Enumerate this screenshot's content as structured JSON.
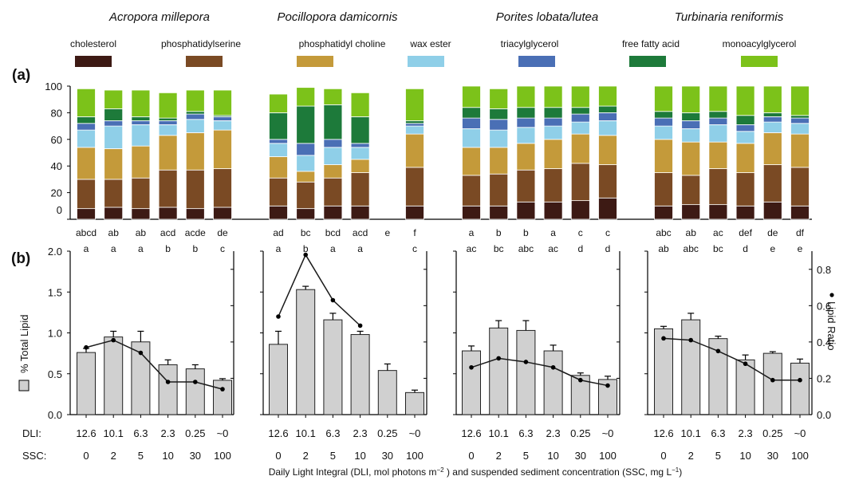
{
  "panel_labels": {
    "a": "(a)",
    "b": "(b)"
  },
  "species": [
    "Acropora millepora",
    "Pocillopora damicornis",
    "Porites lobata/lutea",
    "Turbinaria reniformis"
  ],
  "legend": [
    {
      "label": "cholesterol",
      "color": "#3d1a14"
    },
    {
      "label": "phosphatidylserine",
      "color": "#7a4a24"
    },
    {
      "label": "phosphatidyl choline",
      "color": "#c49a3a"
    },
    {
      "label": "wax ester",
      "color": "#8fcfe8"
    },
    {
      "label": "triacylglycerol",
      "color": "#4a6fb5"
    },
    {
      "label": "free fatty acid",
      "color": "#1d7a3a"
    },
    {
      "label": "monoacylglycerol",
      "color": "#7cc21a"
    }
  ],
  "axis_labels": {
    "y_left": "% Total Lipid",
    "y_right": "Lipid Ratio",
    "row_dli": "DLI:",
    "row_ssc": "SSC:",
    "x_prefix": "Daily Light Integral (DLI, mol photons m",
    "x_exp": "−2",
    "x_mid": " ) and suspended sediment concentration (SSC, mg L",
    "x_exp2": "−1",
    "x_suffix": ")"
  },
  "dli_ticks": [
    "12.6",
    "10.1",
    "6.3",
    "2.3",
    "0.25",
    "~0"
  ],
  "ssc_ticks": [
    "0",
    "2",
    "5",
    "10",
    "30",
    "100"
  ],
  "chart_data": [
    {
      "type": "bar",
      "panel": "(a)",
      "stacked": true,
      "ylim": [
        0,
        100
      ],
      "yticks": [
        0,
        20,
        40,
        60,
        80,
        100
      ],
      "series_order": [
        "cholesterol",
        "phosphatidylserine",
        "phosphatidyl choline",
        "wax ester",
        "triacylglycerol",
        "free fatty acid",
        "monoacylglycerol"
      ],
      "groups": [
        {
          "species": "Acropora millepora",
          "bars": [
            [
              8,
              22,
              24,
              13,
              5,
              5,
              21
            ],
            [
              9,
              21,
              23,
              17,
              4,
              9,
              14
            ],
            [
              8,
              23,
              24,
              16,
              3,
              3,
              20
            ],
            [
              9,
              28,
              26,
              8,
              3,
              2,
              19
            ],
            [
              8,
              29,
              28,
              10,
              4,
              2,
              16
            ],
            [
              9,
              29,
              29,
              7,
              3,
              1,
              19
            ]
          ],
          "letters_top": [
            "abcd",
            "ab",
            "ab",
            "acd",
            "acde",
            "de"
          ],
          "letters_bottom": [
            "a",
            "a",
            "a",
            "b",
            "b",
            "c"
          ]
        },
        {
          "species": "Pocillopora damicornis",
          "bars": [
            [
              10,
              21,
              16,
              10,
              3,
              20,
              14
            ],
            [
              8,
              20,
              8,
              12,
              9,
              28,
              14
            ],
            [
              10,
              21,
              10,
              13,
              6,
              26,
              12
            ],
            [
              10,
              25,
              10,
              9,
              3,
              20,
              18
            ],
            null,
            [
              10,
              29,
              25,
              6,
              2,
              2,
              24
            ]
          ],
          "letters_top": [
            "ad",
            "bc",
            "bcd",
            "acd",
            "e",
            "f"
          ],
          "letters_bottom": [
            "a",
            "b",
            "a",
            "a",
            "",
            "c"
          ]
        },
        {
          "species": "Porites lobata/lutea",
          "bars": [
            [
              10,
              23,
              21,
              14,
              8,
              8,
              16
            ],
            [
              10,
              24,
              20,
              13,
              8,
              8,
              15
            ],
            [
              13,
              24,
              20,
              12,
              7,
              8,
              16
            ],
            [
              13,
              25,
              22,
              10,
              6,
              8,
              16
            ],
            [
              14,
              28,
              22,
              9,
              6,
              5,
              16
            ],
            [
              16,
              25,
              22,
              11,
              6,
              5,
              15
            ]
          ],
          "letters_top": [
            "a",
            "b",
            "b",
            "a",
            "c",
            "c"
          ],
          "letters_bottom": [
            "ac",
            "bc",
            "abc",
            "ac",
            "d",
            "d"
          ]
        },
        {
          "species": "Turbinaria reniformis",
          "bars": [
            [
              10,
              25,
              25,
              10,
              6,
              5,
              19
            ],
            [
              11,
              22,
              25,
              10,
              6,
              6,
              20
            ],
            [
              11,
              27,
              20,
              13,
              5,
              5,
              19
            ],
            [
              10,
              25,
              22,
              9,
              5,
              7,
              22
            ],
            [
              13,
              28,
              24,
              8,
              4,
              3,
              20
            ],
            [
              10,
              29,
              25,
              8,
              4,
              2,
              22
            ]
          ],
          "letters_top": [
            "abc",
            "ab",
            "ac",
            "def",
            "de",
            "df"
          ],
          "letters_bottom": [
            "ab",
            "abc",
            "bc",
            "d",
            "e",
            "e"
          ]
        }
      ]
    },
    {
      "type": "bar",
      "panel": "(b)",
      "ylabel": "% Total Lipid",
      "ylim": [
        0,
        2.0
      ],
      "yticks": [
        0.0,
        0.5,
        1.0,
        1.5,
        2.0
      ],
      "y2label": "Lipid Ratio",
      "y2lim": [
        0,
        0.9
      ],
      "y2ticks": [
        0.0,
        0.2,
        0.4,
        0.6,
        0.8
      ],
      "groups": [
        {
          "species": "Acropora millepora",
          "bars": [
            0.76,
            0.95,
            0.89,
            0.61,
            0.56,
            0.42
          ],
          "err": [
            0.05,
            0.07,
            0.13,
            0.06,
            0.05,
            0.02
          ],
          "lipid_ratio": [
            0.37,
            0.41,
            0.34,
            0.18,
            0.18,
            0.14
          ]
        },
        {
          "species": "Pocillopora damicornis",
          "bars": [
            0.86,
            1.53,
            1.16,
            0.98,
            0.54,
            0.27
          ],
          "err": [
            0.16,
            0.04,
            0.08,
            0.04,
            0.08,
            0.03
          ],
          "lipid_ratio": [
            0.54,
            0.88,
            0.63,
            0.49,
            null,
            null
          ]
        },
        {
          "species": "Porites lobata/lutea",
          "bars": [
            0.78,
            1.06,
            1.03,
            0.78,
            0.48,
            0.43
          ],
          "err": [
            0.06,
            0.09,
            0.12,
            0.07,
            0.03,
            0.04
          ],
          "lipid_ratio": [
            0.26,
            0.31,
            0.29,
            0.26,
            0.19,
            0.16
          ]
        },
        {
          "species": "Turbinaria reniformis",
          "bars": [
            1.05,
            1.16,
            0.93,
            0.67,
            0.75,
            0.63
          ],
          "err": [
            0.03,
            0.08,
            0.03,
            0.06,
            0.02,
            0.05
          ],
          "lipid_ratio": [
            0.42,
            0.41,
            0.35,
            0.28,
            0.19,
            0.19
          ]
        }
      ]
    }
  ]
}
